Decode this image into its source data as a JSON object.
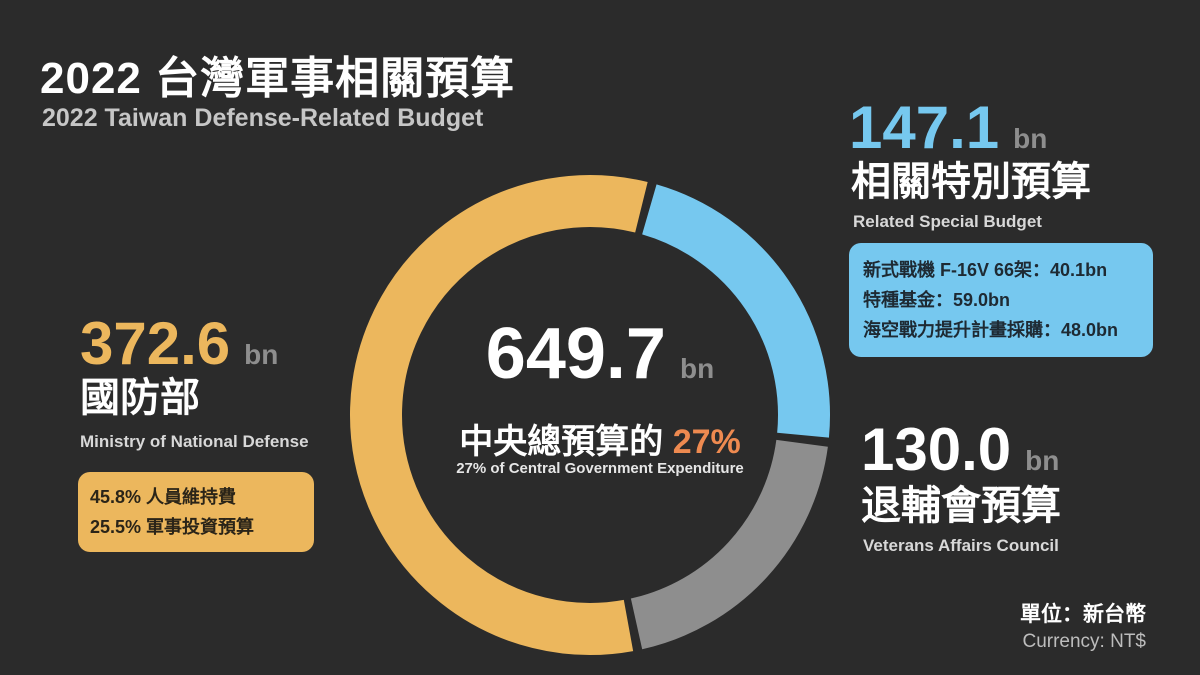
{
  "header": {
    "title": "2022 台灣軍事相關預算",
    "subtitle": "2022 Taiwan Defense-Related Budget"
  },
  "center": {
    "total": "649.7",
    "unit": "bn",
    "zh_prefix": "中央總預算的",
    "zh_pct": "27%",
    "en_caption": "27% of Central Government Expenditure"
  },
  "special": {
    "value": "147.1",
    "unit": "bn",
    "zh": "相關特別預算",
    "en": "Related Special Budget",
    "details": [
      "新式戰機 F-16V 66架：40.1bn",
      "特種基金：59.0bn",
      "海空戰力提升計畫採購：48.0bn"
    ]
  },
  "veterans": {
    "value": "130.0",
    "unit": "bn",
    "zh": "退輔會預算",
    "en": "Veterans Affairs Council"
  },
  "mnd": {
    "value": "372.6",
    "unit": "bn",
    "zh": "國防部",
    "en": "Ministry of National Defense",
    "details": [
      "45.8% 人員維持費",
      "25.5% 軍事投資預算"
    ]
  },
  "footer": {
    "zh": "單位：新台幣",
    "en": "Currency: NT$"
  },
  "colors": {
    "background": "#2b2b2b",
    "special": "#76c8ef",
    "veterans": "#8e8e8e",
    "mnd": "#ecb75d",
    "accent_pct": "#ee8a50"
  },
  "chart_data": {
    "type": "pie",
    "variant": "donut",
    "categories": [
      "相關特別預算",
      "退輔會預算",
      "國防部"
    ],
    "values": [
      147.1,
      130.0,
      372.6
    ],
    "colors": [
      "#76c8ef",
      "#8e8e8e",
      "#ecb75d"
    ],
    "total": 649.7,
    "unit": "bn NT$"
  }
}
